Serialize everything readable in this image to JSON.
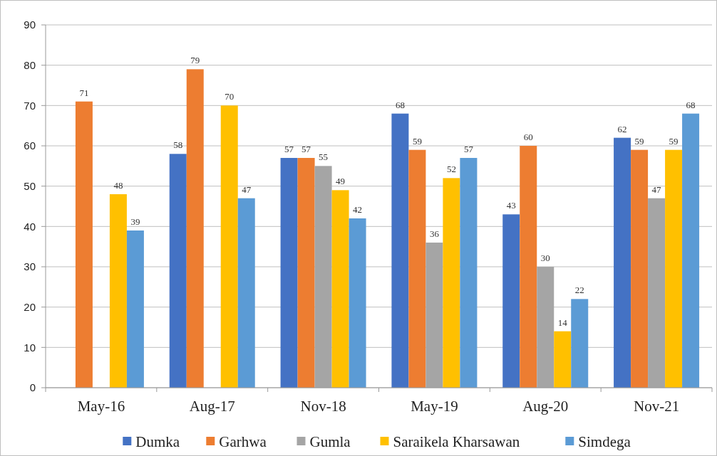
{
  "chart_data": {
    "type": "bar",
    "categories": [
      "May-16",
      "Aug-17",
      "Nov-18",
      "May-19",
      "Aug-20",
      "Nov-21"
    ],
    "series": [
      {
        "name": "Dumka",
        "color": "#4472c4",
        "values": [
          null,
          58,
          57,
          68,
          43,
          62
        ]
      },
      {
        "name": "Garhwa",
        "color": "#ed7d31",
        "values": [
          71,
          79,
          57,
          59,
          60,
          59
        ]
      },
      {
        "name": "Gumla",
        "color": "#a5a5a5",
        "values": [
          null,
          null,
          55,
          36,
          30,
          47
        ]
      },
      {
        "name": "Saraikela Kharsawan",
        "color": "#ffc000",
        "values": [
          48,
          70,
          49,
          52,
          14,
          59
        ]
      },
      {
        "name": "Simdega",
        "color": "#5b9bd5",
        "values": [
          39,
          47,
          42,
          57,
          22,
          68
        ]
      }
    ],
    "ylim": [
      0,
      90
    ],
    "yticks": [
      0,
      10,
      20,
      30,
      40,
      50,
      60,
      70,
      80,
      90
    ],
    "grid": "y",
    "legend": "bottom",
    "data_labels": true
  }
}
